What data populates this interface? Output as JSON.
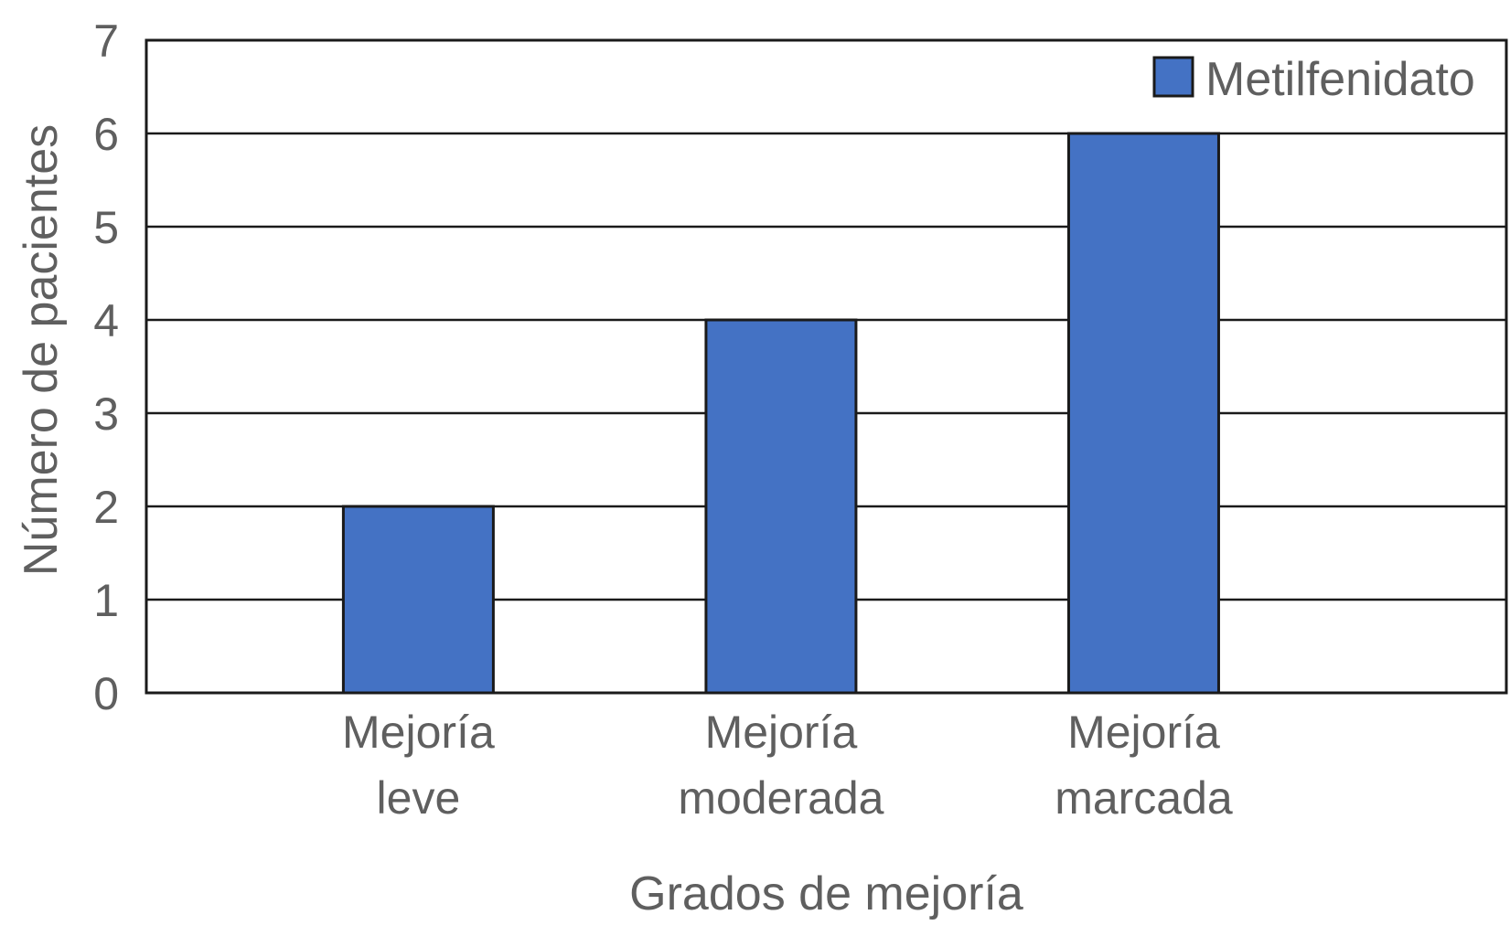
{
  "chart_data": {
    "type": "bar",
    "categories": [
      [
        "Mejoría",
        "leve"
      ],
      [
        "Mejoría",
        "moderada"
      ],
      [
        "Mejoría",
        "marcada"
      ]
    ],
    "series": [
      {
        "name": "Metilfenidato",
        "values": [
          2,
          4,
          6
        ],
        "color": "#4472c4"
      }
    ],
    "xlabel": "Grados de mejoría",
    "ylabel": "Número de pacientes",
    "ylim": [
      0,
      7
    ],
    "yticks": [
      "0",
      "1",
      "2",
      "3",
      "4",
      "5",
      "6",
      "7"
    ],
    "grid": true,
    "legend": "top-right"
  }
}
